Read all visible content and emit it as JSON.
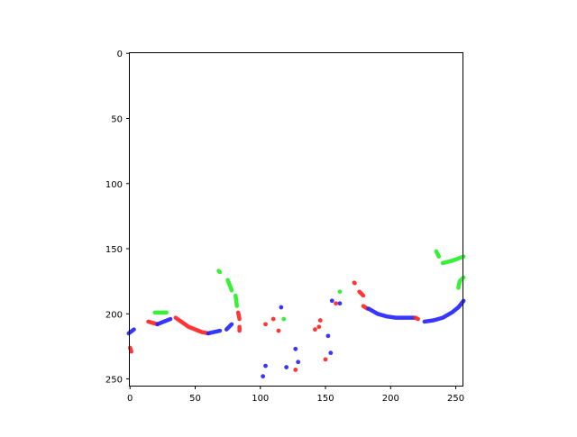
{
  "chart_data": {
    "type": "heatmap",
    "title": "",
    "xlabel": "",
    "ylabel": "",
    "xlim": [
      -0.5,
      255.5
    ],
    "ylim": [
      255.5,
      -0.5
    ],
    "y_inverted": true,
    "grid": false,
    "background": "#ffffff",
    "x_ticks": [
      0,
      50,
      100,
      150,
      200,
      250
    ],
    "y_ticks": [
      0,
      50,
      100,
      150,
      200,
      250
    ],
    "x_tick_labels": [
      "0",
      "50",
      "100",
      "150",
      "200",
      "250"
    ],
    "y_tick_labels": [
      "0",
      "50",
      "100",
      "150",
      "200",
      "250"
    ],
    "colors": {
      "red": "#ff2020",
      "green": "#20f020",
      "blue": "#2020ff"
    },
    "strokes": [
      {
        "color": "blue",
        "points": [
          [
            -1,
            215
          ],
          [
            3,
            212
          ]
        ]
      },
      {
        "color": "red",
        "points": [
          [
            0,
            226
          ],
          [
            1,
            229
          ]
        ]
      },
      {
        "color": "red",
        "points": [
          [
            14,
            206
          ],
          [
            21,
            208
          ]
        ]
      },
      {
        "color": "blue",
        "points": [
          [
            21,
            208
          ],
          [
            31,
            204
          ]
        ]
      },
      {
        "color": "green",
        "points": [
          [
            19,
            199
          ],
          [
            28,
            199
          ]
        ]
      },
      {
        "color": "red",
        "points": [
          [
            35,
            203
          ],
          [
            45,
            210
          ],
          [
            55,
            214
          ],
          [
            60,
            215
          ]
        ]
      },
      {
        "color": "blue",
        "points": [
          [
            60,
            215
          ],
          [
            69,
            213
          ]
        ]
      },
      {
        "color": "blue",
        "points": [
          [
            74,
            212
          ],
          [
            78,
            208
          ]
        ]
      },
      {
        "color": "green",
        "points": [
          [
            68,
            167
          ],
          [
            69,
            168
          ]
        ]
      },
      {
        "color": "green",
        "points": [
          [
            75,
            174
          ],
          [
            78,
            182
          ]
        ]
      },
      {
        "color": "green",
        "points": [
          [
            81,
            186
          ],
          [
            82,
            194
          ]
        ]
      },
      {
        "color": "red",
        "points": [
          [
            83,
            199
          ],
          [
            84,
            204
          ]
        ]
      },
      {
        "color": "red",
        "points": [
          [
            84,
            210
          ],
          [
            84,
            213
          ]
        ]
      },
      {
        "color": "red",
        "points": [
          [
            172,
            176
          ],
          [
            172.5,
            176.5
          ]
        ]
      },
      {
        "color": "red",
        "points": [
          [
            176,
            183
          ],
          [
            179,
            186
          ]
        ]
      },
      {
        "color": "red",
        "points": [
          [
            179,
            194
          ],
          [
            182,
            196
          ]
        ]
      },
      {
        "color": "blue",
        "points": [
          [
            183,
            196
          ],
          [
            190,
            200
          ],
          [
            197,
            202
          ],
          [
            204,
            203
          ],
          [
            212,
            203
          ],
          [
            218,
            203
          ]
        ]
      },
      {
        "color": "red",
        "points": [
          [
            219,
            203
          ],
          [
            221,
            204
          ]
        ]
      },
      {
        "color": "blue",
        "points": [
          [
            226,
            206
          ],
          [
            233,
            205
          ],
          [
            240,
            203
          ],
          [
            247,
            199
          ],
          [
            252,
            195
          ],
          [
            256,
            190
          ]
        ]
      },
      {
        "color": "green",
        "points": [
          [
            235,
            152
          ],
          [
            237,
            156
          ]
        ]
      },
      {
        "color": "green",
        "points": [
          [
            240,
            161
          ],
          [
            248,
            159
          ],
          [
            256,
            156
          ]
        ]
      },
      {
        "color": "green",
        "points": [
          [
            252,
            180
          ],
          [
            253,
            175
          ],
          [
            256,
            172
          ]
        ]
      }
    ],
    "dots": [
      {
        "color": "blue",
        "x": 116,
        "y": 195
      },
      {
        "color": "red",
        "x": 104,
        "y": 208
      },
      {
        "color": "red",
        "x": 110,
        "y": 204
      },
      {
        "color": "green",
        "x": 118,
        "y": 204
      },
      {
        "color": "red",
        "x": 114,
        "y": 213
      },
      {
        "color": "red",
        "x": 146,
        "y": 205
      },
      {
        "color": "red",
        "x": 145,
        "y": 210
      },
      {
        "color": "red",
        "x": 142,
        "y": 212
      },
      {
        "color": "blue",
        "x": 152,
        "y": 217
      },
      {
        "color": "blue",
        "x": 127,
        "y": 227
      },
      {
        "color": "blue",
        "x": 120,
        "y": 241
      },
      {
        "color": "blue",
        "x": 104,
        "y": 240
      },
      {
        "color": "blue",
        "x": 102,
        "y": 248
      },
      {
        "color": "red",
        "x": 150,
        "y": 235
      },
      {
        "color": "red",
        "x": 127,
        "y": 243
      },
      {
        "color": "blue",
        "x": 129,
        "y": 237
      },
      {
        "color": "blue",
        "x": 155,
        "y": 190
      },
      {
        "color": "blue",
        "x": 161,
        "y": 192
      },
      {
        "color": "red",
        "x": 158,
        "y": 192
      },
      {
        "color": "green",
        "x": 161,
        "y": 183
      },
      {
        "color": "blue",
        "x": 154,
        "y": 230
      }
    ]
  }
}
